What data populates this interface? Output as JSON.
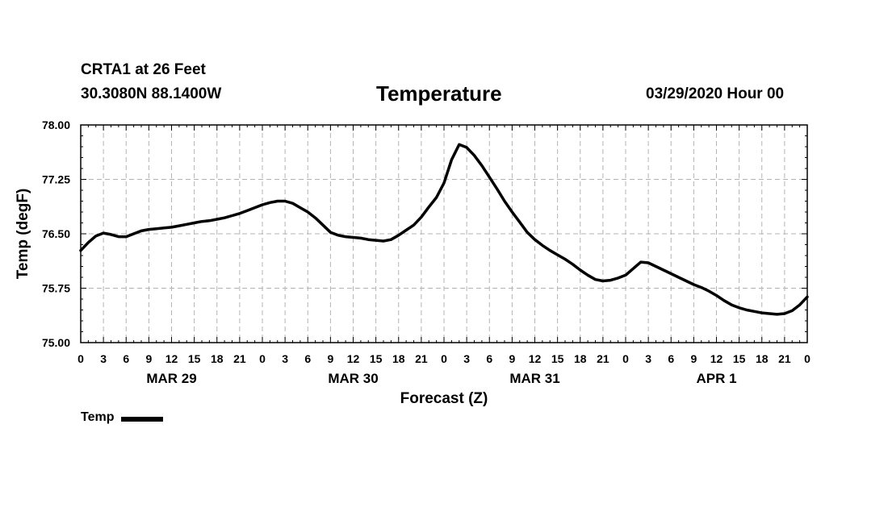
{
  "header": {
    "station": "CRTA1 at 26 Feet",
    "coords": "30.3080N 88.1400W",
    "title": "Temperature",
    "datetime": "03/29/2020 Hour 00"
  },
  "chart_data": {
    "type": "line",
    "title": "Temperature",
    "xlabel": "Forecast (Z)",
    "ylabel": "Temp (degF)",
    "ylim": [
      75.0,
      78.0
    ],
    "yticks": [
      "78.00",
      "77.25",
      "76.50",
      "75.75",
      "75.00"
    ],
    "ytick_values": [
      78.0,
      77.25,
      76.5,
      75.75,
      75.0
    ],
    "xlim": [
      0,
      96
    ],
    "xtick_hours": [
      0,
      3,
      6,
      9,
      12,
      15,
      18,
      21,
      24,
      27,
      30,
      33,
      36,
      39,
      42,
      45,
      48,
      51,
      54,
      57,
      60,
      63,
      66,
      69,
      72,
      75,
      78,
      81,
      84,
      87,
      90,
      93,
      96
    ],
    "xtick_labels": [
      "0",
      "3",
      "6",
      "9",
      "12",
      "15",
      "18",
      "21",
      "0",
      "3",
      "6",
      "9",
      "12",
      "15",
      "18",
      "21",
      "0",
      "3",
      "6",
      "9",
      "12",
      "15",
      "18",
      "21",
      "0",
      "3",
      "6",
      "9",
      "12",
      "15",
      "18",
      "21",
      "0"
    ],
    "day_labels": [
      {
        "label": "MAR 29",
        "hour": 12
      },
      {
        "label": "MAR 30",
        "hour": 36
      },
      {
        "label": "MAR 31",
        "hour": 60
      },
      {
        "label": "APR 1",
        "hour": 84
      }
    ],
    "grid": true,
    "legend": [
      {
        "name": "Temp",
        "position": "bottom-left"
      }
    ],
    "series": [
      {
        "name": "Temp",
        "x": [
          0,
          1,
          2,
          3,
          4,
          5,
          6,
          7,
          8,
          9,
          10,
          11,
          12,
          13,
          14,
          15,
          16,
          17,
          18,
          19,
          20,
          21,
          22,
          23,
          24,
          25,
          26,
          27,
          28,
          29,
          30,
          31,
          32,
          33,
          34,
          35,
          36,
          37,
          38,
          39,
          40,
          41,
          42,
          43,
          44,
          45,
          46,
          47,
          48,
          49,
          50,
          51,
          52,
          53,
          54,
          55,
          56,
          57,
          58,
          59,
          60,
          61,
          62,
          63,
          64,
          65,
          66,
          67,
          68,
          69,
          70,
          71,
          72,
          73,
          74,
          75,
          76,
          77,
          78,
          79,
          80,
          81,
          82,
          83,
          84,
          85,
          86,
          87,
          88,
          89,
          90,
          91,
          92,
          93,
          94,
          95,
          96
        ],
        "y": [
          76.27,
          76.38,
          76.47,
          76.51,
          76.49,
          76.46,
          76.46,
          76.5,
          76.54,
          76.56,
          76.57,
          76.58,
          76.59,
          76.61,
          76.63,
          76.65,
          76.67,
          76.68,
          76.7,
          76.72,
          76.75,
          76.78,
          76.82,
          76.86,
          76.9,
          76.93,
          76.95,
          76.95,
          76.92,
          76.86,
          76.8,
          76.72,
          76.62,
          76.52,
          76.48,
          76.46,
          76.45,
          76.44,
          76.42,
          76.41,
          76.4,
          76.42,
          76.48,
          76.55,
          76.62,
          76.73,
          76.87,
          77.0,
          77.2,
          77.52,
          77.73,
          77.69,
          77.58,
          77.44,
          77.28,
          77.12,
          76.95,
          76.8,
          76.66,
          76.52,
          76.42,
          76.34,
          76.27,
          76.21,
          76.15,
          76.08,
          76.0,
          75.93,
          75.87,
          75.85,
          75.86,
          75.89,
          75.93,
          76.02,
          76.11,
          76.1,
          76.05,
          76.0,
          75.95,
          75.9,
          75.85,
          75.8,
          75.76,
          75.71,
          75.65,
          75.58,
          75.52,
          75.48,
          75.45,
          75.43,
          75.41,
          75.4,
          75.39,
          75.4,
          75.44,
          75.52,
          75.63
        ]
      }
    ]
  }
}
